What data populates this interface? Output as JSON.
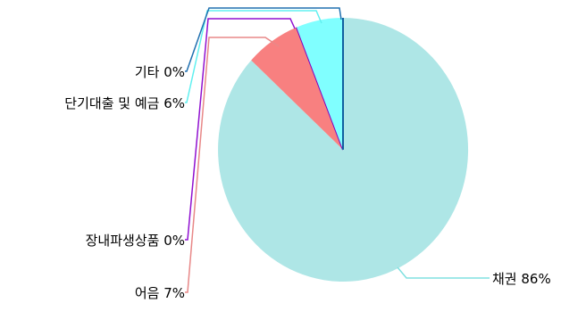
{
  "chart_data": {
    "type": "pie",
    "start_angle_deg": 0,
    "direction": "clockwise",
    "slices": [
      {
        "label": "채권",
        "value": 86,
        "display": "채권 86%",
        "color": "#aee6e6",
        "leader_color": "#80e0e0"
      },
      {
        "label": "어음",
        "value": 7,
        "display": "어음 7%",
        "color": "#f88080",
        "leader_color": "#e88888"
      },
      {
        "label": "장내파생상품",
        "value": 0,
        "display": "장내파생상품 0%",
        "color": "#8000c0",
        "leader_color": "#9010d0"
      },
      {
        "label": "단기대출 및 예금",
        "value": 6,
        "display": "단기대출 및 예금 6%",
        "color": "#80ffff",
        "leader_color": "#60f0f0"
      },
      {
        "label": "기타",
        "value": 0,
        "display": "기타 0%",
        "color": "#1060a0",
        "leader_color": "#2070b0"
      }
    ],
    "title": "",
    "legend": "none"
  }
}
